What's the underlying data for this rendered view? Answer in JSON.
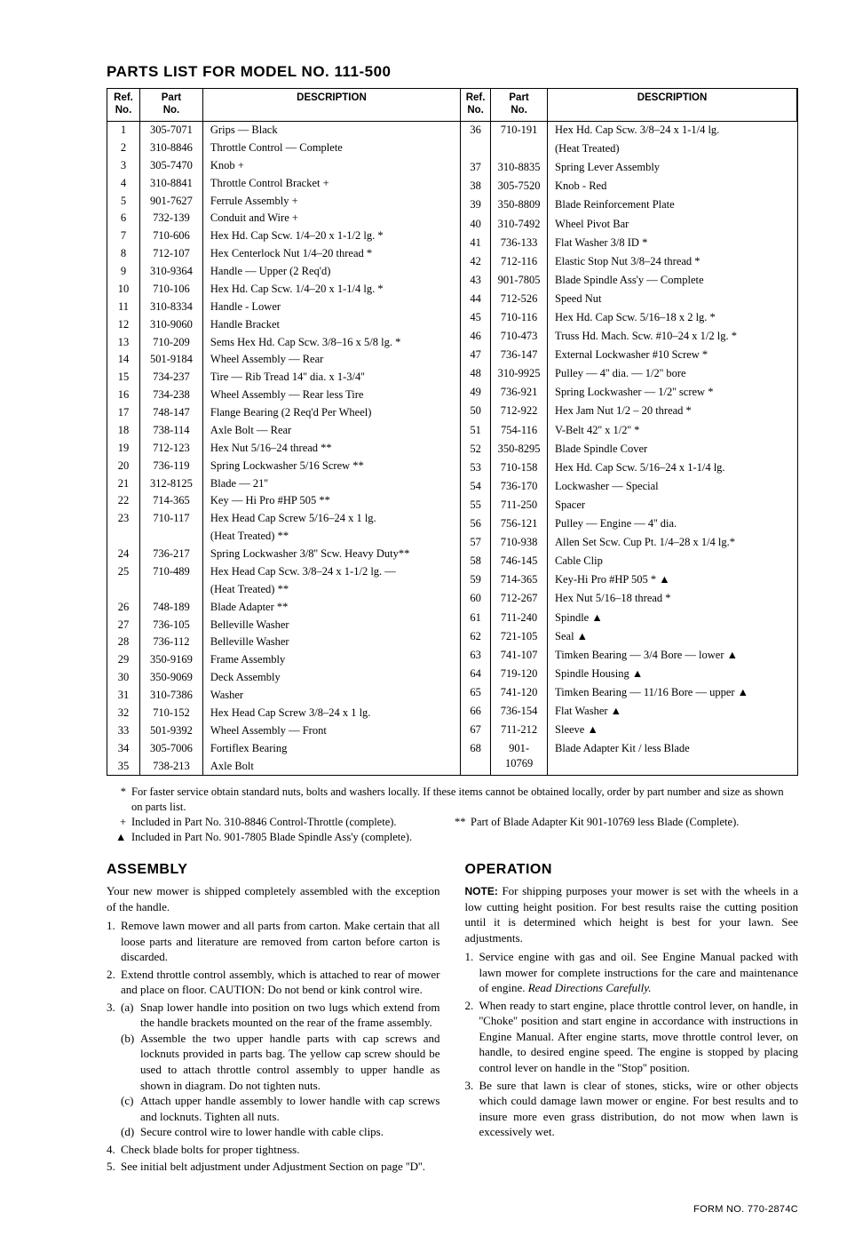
{
  "title": "PARTS LIST FOR MODEL NO. 111-500",
  "table_headers": {
    "ref": "Ref.\nNo.",
    "part": "Part\nNo.",
    "desc": "DESCRIPTION"
  },
  "left_rows": [
    {
      "ref": "1",
      "part": "305-7071",
      "desc": "Grips — Black"
    },
    {
      "ref": "2",
      "part": "310-8846",
      "desc": "Throttle Control — Complete"
    },
    {
      "ref": "3",
      "part": "305-7470",
      "desc": "Knob +"
    },
    {
      "ref": "4",
      "part": "310-8841",
      "desc": "Throttle Control Bracket +"
    },
    {
      "ref": "5",
      "part": "901-7627",
      "desc": "Ferrule Assembly +"
    },
    {
      "ref": "6",
      "part": "732-139",
      "desc": "Conduit and Wire +"
    },
    {
      "ref": "7",
      "part": "710-606",
      "desc": "Hex Hd. Cap Scw. 1/4–20 x 1-1/2 lg. *"
    },
    {
      "ref": "8",
      "part": "712-107",
      "desc": "Hex Centerlock Nut 1/4–20 thread *"
    },
    {
      "ref": "9",
      "part": "310-9364",
      "desc": "Handle — Upper (2 Req'd)"
    },
    {
      "ref": "10",
      "part": "710-106",
      "desc": "Hex Hd. Cap Scw. 1/4–20 x 1-1/4 lg. *"
    },
    {
      "ref": "11",
      "part": "310-8334",
      "desc": "Handle - Lower"
    },
    {
      "ref": "12",
      "part": "310-9060",
      "desc": "Handle Bracket"
    },
    {
      "ref": "13",
      "part": "710-209",
      "desc": "Sems Hex Hd. Cap Scw. 3/8–16 x 5/8 lg. *"
    },
    {
      "ref": "14",
      "part": "501-9184",
      "desc": "Wheel Assembly — Rear"
    },
    {
      "ref": "15",
      "part": "734-237",
      "desc": "Tire — Rib Tread 14'' dia. x 1-3/4''"
    },
    {
      "ref": "16",
      "part": "734-238",
      "desc": "Wheel Assembly — Rear less Tire"
    },
    {
      "ref": "17",
      "part": "748-147",
      "desc": "Flange Bearing (2 Req'd Per Wheel)"
    },
    {
      "ref": "18",
      "part": "738-114",
      "desc": "Axle Bolt — Rear"
    },
    {
      "ref": "19",
      "part": "712-123",
      "desc": "Hex Nut 5/16–24 thread **"
    },
    {
      "ref": "20",
      "part": "736-119",
      "desc": "Spring Lockwasher 5/16 Screw **"
    },
    {
      "ref": "21",
      "part": "312-8125",
      "desc": "Blade — 21''"
    },
    {
      "ref": "22",
      "part": "714-365",
      "desc": "Key — Hi Pro #HP 505 **"
    },
    {
      "ref": "23",
      "part": "710-117",
      "desc": "Hex Head Cap Screw 5/16–24 x 1 lg."
    },
    {
      "ref": "",
      "part": "",
      "desc": "(Heat Treated) **"
    },
    {
      "ref": "24",
      "part": "736-217",
      "desc": "Spring Lockwasher 3/8'' Scw. Heavy Duty**"
    },
    {
      "ref": "25",
      "part": "710-489",
      "desc": "Hex Head Cap Scw. 3/8–24 x 1-1/2 lg. —"
    },
    {
      "ref": "",
      "part": "",
      "desc": "(Heat Treated) **"
    },
    {
      "ref": "26",
      "part": "748-189",
      "desc": "Blade Adapter **"
    },
    {
      "ref": "27",
      "part": "736-105",
      "desc": "Belleville Washer"
    },
    {
      "ref": "28",
      "part": "736-112",
      "desc": "Belleville Washer"
    },
    {
      "ref": "29",
      "part": "350-9169",
      "desc": "Frame Assembly"
    },
    {
      "ref": "30",
      "part": "350-9069",
      "desc": "Deck Assembly"
    },
    {
      "ref": "31",
      "part": "310-7386",
      "desc": "Washer"
    },
    {
      "ref": "32",
      "part": "710-152",
      "desc": "Hex Head Cap Screw 3/8–24 x 1 lg."
    },
    {
      "ref": "33",
      "part": "501-9392",
      "desc": "Wheel Assembly — Front"
    },
    {
      "ref": "34",
      "part": "305-7006",
      "desc": "Fortiflex Bearing"
    },
    {
      "ref": "35",
      "part": "738-213",
      "desc": "Axle Bolt"
    }
  ],
  "right_rows": [
    {
      "ref": "36",
      "part": "710-191",
      "desc": "Hex Hd. Cap Scw. 3/8–24 x 1-1/4 lg."
    },
    {
      "ref": "",
      "part": "",
      "desc": "(Heat Treated)"
    },
    {
      "ref": "37",
      "part": "310-8835",
      "desc": "Spring Lever Assembly"
    },
    {
      "ref": "38",
      "part": "305-7520",
      "desc": "Knob - Red"
    },
    {
      "ref": "39",
      "part": "350-8809",
      "desc": "Blade Reinforcement Plate"
    },
    {
      "ref": "40",
      "part": "310-7492",
      "desc": "Wheel Pivot Bar"
    },
    {
      "ref": "41",
      "part": "736-133",
      "desc": "Flat Washer 3/8 ID *"
    },
    {
      "ref": "42",
      "part": "712-116",
      "desc": "Elastic Stop Nut 3/8–24 thread *"
    },
    {
      "ref": "43",
      "part": "901-7805",
      "desc": "Blade Spindle Ass'y — Complete"
    },
    {
      "ref": "44",
      "part": "712-526",
      "desc": "Speed Nut"
    },
    {
      "ref": "45",
      "part": "710-116",
      "desc": "Hex Hd. Cap Scw. 5/16–18 x 2 lg. *"
    },
    {
      "ref": "46",
      "part": "710-473",
      "desc": "Truss Hd. Mach. Scw. #10–24 x 1/2 lg. *"
    },
    {
      "ref": "47",
      "part": "736-147",
      "desc": "External Lockwasher #10 Screw *"
    },
    {
      "ref": "48",
      "part": "310-9925",
      "desc": "Pulley — 4'' dia. — 1/2'' bore"
    },
    {
      "ref": "49",
      "part": "736-921",
      "desc": "Spring Lockwasher — 1/2'' screw *"
    },
    {
      "ref": "50",
      "part": "712-922",
      "desc": "Hex Jam Nut 1/2 – 20 thread *"
    },
    {
      "ref": "51",
      "part": "754-116",
      "desc": "V-Belt 42'' x 1/2'' *"
    },
    {
      "ref": "52",
      "part": "350-8295",
      "desc": "Blade Spindle Cover"
    },
    {
      "ref": "53",
      "part": "710-158",
      "desc": "Hex Hd. Cap Scw. 5/16–24 x 1-1/4 lg."
    },
    {
      "ref": "54",
      "part": "736-170",
      "desc": "Lockwasher — Special"
    },
    {
      "ref": "55",
      "part": "711-250",
      "desc": "Spacer"
    },
    {
      "ref": "56",
      "part": "756-121",
      "desc": "Pulley — Engine — 4'' dia."
    },
    {
      "ref": "57",
      "part": "710-938",
      "desc": "Allen Set Scw. Cup Pt. 1/4–28 x 1/4 lg.*"
    },
    {
      "ref": "58",
      "part": "746-145",
      "desc": "Cable Clip"
    },
    {
      "ref": "59",
      "part": "714-365",
      "desc": "Key-Hi Pro #HP 505 * ▲"
    },
    {
      "ref": "60",
      "part": "712-267",
      "desc": "Hex Nut 5/16–18 thread *"
    },
    {
      "ref": "61",
      "part": "711-240",
      "desc": "Spindle ▲"
    },
    {
      "ref": "62",
      "part": "721-105",
      "desc": "Seal ▲"
    },
    {
      "ref": "63",
      "part": "741-107",
      "desc": "Timken Bearing — 3/4 Bore — lower ▲"
    },
    {
      "ref": "64",
      "part": "719-120",
      "desc": "Spindle Housing   ▲"
    },
    {
      "ref": "65",
      "part": "741-120",
      "desc": "Timken Bearing — 11/16 Bore — upper ▲"
    },
    {
      "ref": "66",
      "part": "736-154",
      "desc": "Flat Washer ▲"
    },
    {
      "ref": "67",
      "part": "711-212",
      "desc": "Sleeve ▲"
    },
    {
      "ref": "68",
      "part": "901-10769",
      "desc": "Blade Adapter Kit / less Blade"
    }
  ],
  "footnotes": {
    "star": "For faster service obtain standard nuts, bolts and washers locally. If these items cannot be obtained locally, order by part number and size as shown on parts list.",
    "plus": "Included in Part No. 310-8846 Control-Throttle (complete).",
    "triangle": "Included in Part No. 901-7805 Blade Spindle Ass'y (complete).",
    "dblstar": "Part of Blade Adapter Kit 901-10769 less Blade (Complete)."
  },
  "assembly": {
    "title": "ASSEMBLY",
    "intro": "Your new mower is shipped completely assembled with the exception of the handle.",
    "items": [
      "Remove lawn mower and all parts from carton. Make certain that all loose parts and literature are removed from carton before carton is discarded.",
      "Extend throttle control assembly, which is attached to rear of mower and place on floor. CAUTION: Do not bend or kink control wire."
    ],
    "item3_sub": [
      {
        "l": "(a)",
        "t": "Snap lower handle into position on two lugs which extend from the handle brackets mounted on the rear of the frame assembly."
      },
      {
        "l": "(b)",
        "t": "Assemble the two upper handle parts with cap screws and locknuts provided in parts bag. The yellow cap screw should be used to attach throttle control assembly to upper handle as shown in diagram. Do not tighten nuts."
      },
      {
        "l": "(c)",
        "t": "Attach upper handle assembly to lower handle with cap screws and locknuts. Tighten all nuts."
      },
      {
        "l": "(d)",
        "t": "Secure control wire to lower handle with cable clips."
      }
    ],
    "items_after": [
      "Check blade bolts for proper tightness.",
      "See initial belt adjustment under Adjustment Section on page ''D''."
    ]
  },
  "operation": {
    "title": "OPERATION",
    "note_label": "NOTE:",
    "note": "For shipping purposes your mower is set with the wheels in a low cutting height position. For best results raise the cutting position until it is determined which height is best for your lawn. See adjustments.",
    "items": [
      "Service engine with gas and oil. See Engine Manual packed with lawn mower for complete instructions for the care and maintenance of engine. ",
      "When ready to start engine, place throttle control lever, on handle, in ''Choke'' position and start engine in accordance with instructions in Engine Manual. After engine starts, move throttle control lever, on handle, to desired engine speed. The engine is stopped by placing control lever on handle in the ''Stop'' position.",
      "Be sure that lawn is clear of stones, sticks, wire or other objects which could damage lawn mower or engine. For best results and to insure more even grass distribution, do not mow when lawn is excessively wet."
    ],
    "item1_suffix_italic": "Read Directions Carefully."
  },
  "form_no": "FORM NO. 770-2874C"
}
